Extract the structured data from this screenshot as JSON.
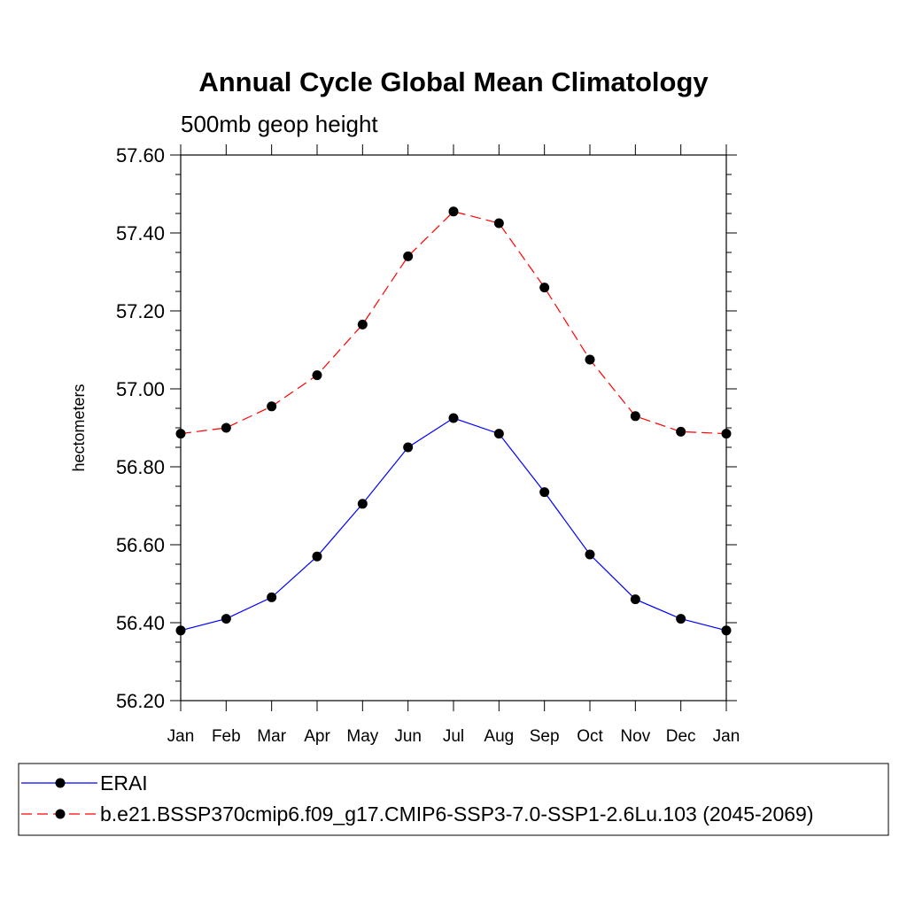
{
  "chart_data": {
    "type": "line",
    "title": "Annual Cycle Global Mean Climatology",
    "subtitle": "500mb geop height",
    "ylabel": "hectometers",
    "xlabel": "",
    "categories": [
      "Jan",
      "Feb",
      "Mar",
      "Apr",
      "May",
      "Jun",
      "Jul",
      "Aug",
      "Sep",
      "Oct",
      "Nov",
      "Dec",
      "Jan"
    ],
    "ylim": [
      56.2,
      57.6
    ],
    "yticks": [
      "56.20",
      "56.40",
      "56.60",
      "56.80",
      "57.00",
      "57.20",
      "57.40",
      "57.60"
    ],
    "ytick_values": [
      56.2,
      56.4,
      56.6,
      56.8,
      57.0,
      57.2,
      57.4,
      57.6
    ],
    "grid": false,
    "legend_position": "bottom",
    "series": [
      {
        "name": "ERAI",
        "color": "#0000ff",
        "dash": "solid",
        "values": [
          56.38,
          56.41,
          56.465,
          56.57,
          56.705,
          56.85,
          56.925,
          56.885,
          56.735,
          56.575,
          56.46,
          56.41,
          56.38
        ]
      },
      {
        "name": "b.e21.BSSP370cmip6.f09_g17.CMIP6-SSP3-7.0-SSP1-2.6Lu.103 (2045-2069)",
        "color": "#ff0000",
        "dash": "dashed",
        "values": [
          56.885,
          56.9,
          56.955,
          57.035,
          57.165,
          57.34,
          57.455,
          57.425,
          57.26,
          57.075,
          56.93,
          56.89,
          56.885
        ]
      }
    ]
  }
}
